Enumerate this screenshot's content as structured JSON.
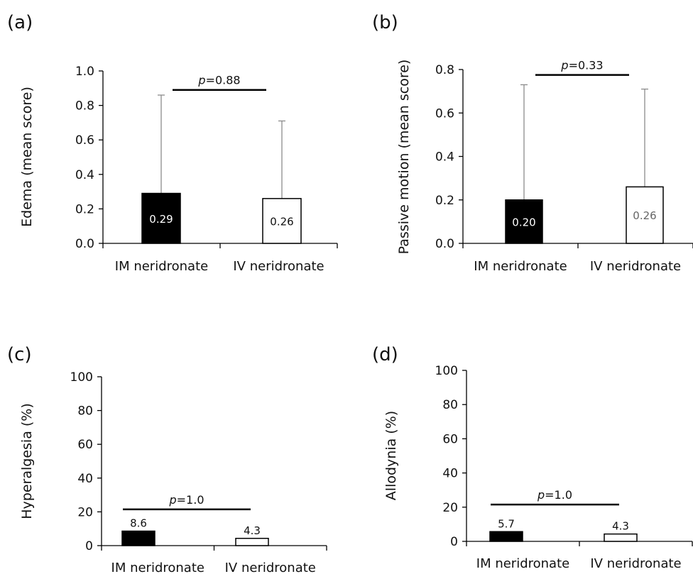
{
  "chart_data": [
    {
      "panel_label": "(a)",
      "type": "bar",
      "categories": [
        "IM neridronate",
        "IV neridronate"
      ],
      "values": [
        0.29,
        0.26
      ],
      "data_labels": [
        "0.29",
        "0.26"
      ],
      "error_upper": [
        0.86,
        0.71
      ],
      "ylabel": "Edema (mean score)",
      "ylim": [
        0,
        1.0
      ],
      "yticks": [
        0,
        0.2,
        0.4,
        0.6,
        0.8,
        1.0
      ],
      "ytick_labels": [
        "0.0",
        "0.2",
        "0.4",
        "0.6",
        "0.8",
        "1.0"
      ],
      "label_inside": true,
      "significance": {
        "p_symbol": "p",
        "p_value": "=0.88",
        "y": 0.89
      },
      "colors": [
        "#000000",
        "#ffffff"
      ]
    },
    {
      "panel_label": "(b)",
      "type": "bar",
      "categories": [
        "IM neridronate",
        "IV neridronate"
      ],
      "values": [
        0.2,
        0.26
      ],
      "data_labels": [
        "0.20",
        "0.26"
      ],
      "error_upper": [
        0.73,
        0.71
      ],
      "ylabel": "Passive motion (mean score)",
      "ylim": [
        0,
        0.8
      ],
      "yticks": [
        0,
        0.2,
        0.4,
        0.6,
        0.8
      ],
      "ytick_labels": [
        "0.0",
        "0.2",
        "0.4",
        "0.6",
        "0.8"
      ],
      "label_inside": true,
      "significance": {
        "p_symbol": "p",
        "p_value": "=0.33",
        "y": 0.775
      },
      "colors": [
        "#000000",
        "#ffffff"
      ]
    },
    {
      "panel_label": "(c)",
      "type": "bar",
      "categories": [
        "IM neridronate",
        "IV neridronate"
      ],
      "values": [
        8.6,
        4.3
      ],
      "data_labels": [
        "8.6",
        "4.3"
      ],
      "ylabel": "Hyperalgesia (%)",
      "ylim": [
        0,
        100
      ],
      "yticks": [
        0,
        20,
        40,
        60,
        80,
        100
      ],
      "ytick_labels": [
        "0",
        "20",
        "40",
        "60",
        "80",
        "100"
      ],
      "label_inside": false,
      "significance": {
        "p_symbol": "p",
        "p_value": "=1.0",
        "y": 21.5
      },
      "colors": [
        "#000000",
        "#ffffff"
      ]
    },
    {
      "panel_label": "(d)",
      "type": "bar",
      "categories": [
        "IM neridronate",
        "IV neridronate"
      ],
      "values": [
        5.7,
        4.3
      ],
      "data_labels": [
        "5.7",
        "4.3"
      ],
      "ylabel": "Allodynia (%)",
      "ylim": [
        0,
        100
      ],
      "yticks": [
        0,
        20,
        40,
        60,
        80,
        100
      ],
      "ytick_labels": [
        "0",
        "20",
        "40",
        "60",
        "80",
        "100"
      ],
      "label_inside": false,
      "significance": {
        "p_symbol": "p",
        "p_value": "=1.0",
        "y": 21.5
      },
      "colors": [
        "#000000",
        "#ffffff"
      ]
    }
  ]
}
